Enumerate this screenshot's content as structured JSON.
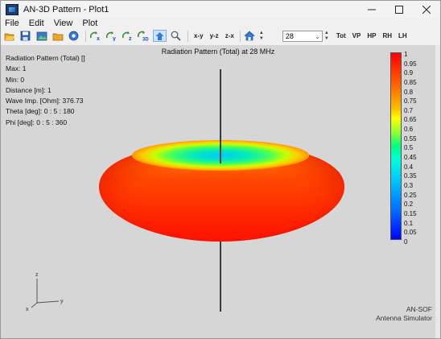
{
  "window": {
    "title": "AN-3D Pattern - Plot1",
    "minimize_icon": "minimize-icon",
    "maximize_icon": "maximize-icon",
    "close_icon": "close-icon"
  },
  "menu": [
    {
      "label": "File"
    },
    {
      "label": "Edit"
    },
    {
      "label": "View"
    },
    {
      "label": "Plot"
    }
  ],
  "toolbar": {
    "icons": [
      "open-folder-icon",
      "save-icon",
      "export-image-icon",
      "folder-icon",
      "settings-icon",
      "rotate-x-icon",
      "rotate-y-icon",
      "rotate-z-icon",
      "rotate-3d-icon",
      "view-top-icon",
      "zoom-icon"
    ],
    "rotate_x": "x",
    "rotate_y": "y",
    "rotate_z": "z",
    "rotate_3d": "3D",
    "plane_xy": "x-y",
    "plane_yz": "y-z",
    "plane_zx": "z-x",
    "frequency_value": "28",
    "tot": "Tot",
    "vp": "VP",
    "hp": "HP",
    "rh": "RH",
    "lh": "LH"
  },
  "plot": {
    "title": "Radiation Pattern (Total) at 28 MHz",
    "info": [
      "Radiation Pattern (Total) []",
      "Max: 1",
      "Min: 0",
      "Distance [m]: 1",
      "Wave Imp. [Ohm]: 376.73",
      "Theta [deg]: 0 : 5 : 180",
      "Phi [deg]: 0 : 5 : 360"
    ],
    "legend": [
      "1",
      "0.95",
      "0.9",
      "0.85",
      "0.8",
      "0.75",
      "0.7",
      "0.65",
      "0.6",
      "0.55",
      "0.5",
      "0.45",
      "0.4",
      "0.35",
      "0.3",
      "0.25",
      "0.2",
      "0.15",
      "0.1",
      "0.05",
      "0"
    ],
    "axes": {
      "z": "z",
      "y": "y",
      "x": "x"
    },
    "watermark_line1": "AN-SOF",
    "watermark_line2": "Antenna Simulator",
    "colors": {
      "max": "#ff0000",
      "min": "#0000ff",
      "mid": "#00ff80"
    }
  }
}
